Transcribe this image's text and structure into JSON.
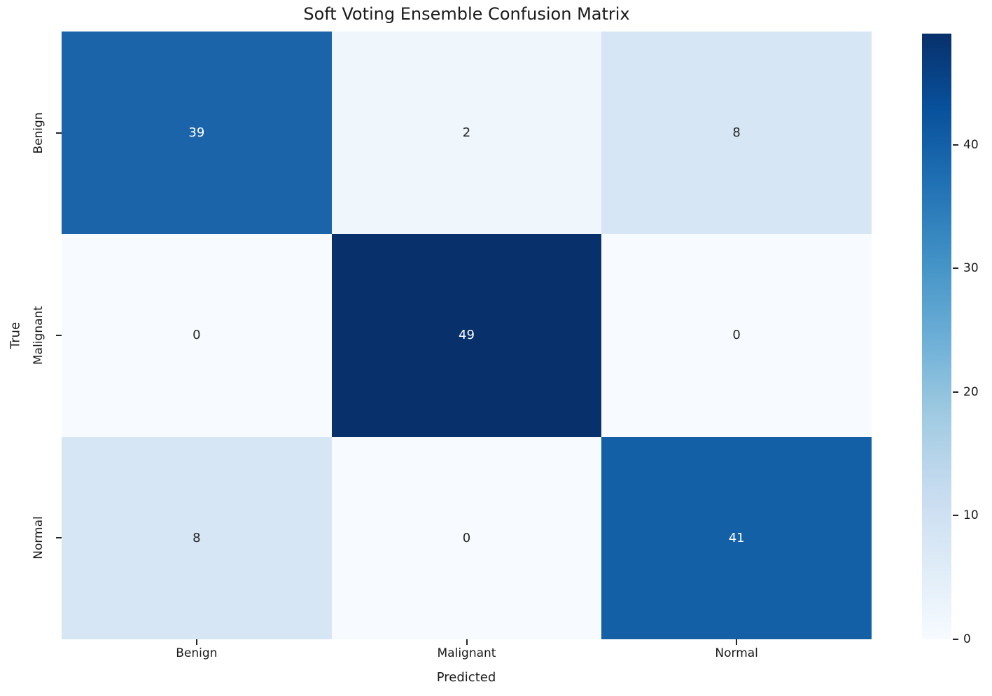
{
  "chart_data": {
    "type": "heatmap",
    "title": "Soft Voting Ensemble Confusion Matrix",
    "xlabel": "Predicted",
    "ylabel": "True",
    "x_categories": [
      "Benign",
      "Malignant",
      "Normal"
    ],
    "y_categories": [
      "Benign",
      "Malignant",
      "Normal"
    ],
    "matrix": [
      [
        39,
        2,
        8
      ],
      [
        0,
        49,
        0
      ],
      [
        8,
        0,
        41
      ]
    ],
    "vmin": 0,
    "vmax": 49,
    "colormap": "Blues",
    "colorbar_ticks": [
      0,
      10,
      20,
      30,
      40
    ],
    "legend_position": "right-colorbar",
    "grid": false,
    "cell_colors": [
      [
        "#1b64aa",
        "#eff6fc",
        "#d7e6f4"
      ],
      [
        "#f7fbff",
        "#08306b",
        "#f7fbff"
      ],
      [
        "#d7e6f4",
        "#f7fbff",
        "#1460a6"
      ]
    ],
    "cell_text_colors": [
      [
        "#ffffff",
        "#262626",
        "#262626"
      ],
      [
        "#262626",
        "#ffffff",
        "#262626"
      ],
      [
        "#262626",
        "#262626",
        "#ffffff"
      ]
    ],
    "colormap_stops": [
      "#f7fbff",
      "#deebf7",
      "#c6dbef",
      "#9ecae1",
      "#6baed6",
      "#4292c6",
      "#2171b5",
      "#08519c",
      "#08306b"
    ]
  }
}
